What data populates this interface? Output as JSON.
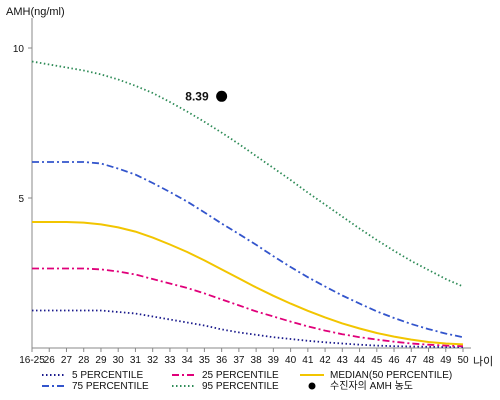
{
  "chart_data": {
    "type": "line",
    "ylabel": "AMH(ng/ml)",
    "xlabel": "나이",
    "ylim": [
      0,
      11
    ],
    "y_ticks": [
      5,
      10
    ],
    "x": [
      "16-25",
      "26",
      "27",
      "28",
      "29",
      "30",
      "31",
      "32",
      "33",
      "34",
      "35",
      "36",
      "37",
      "38",
      "39",
      "40",
      "41",
      "42",
      "43",
      "44",
      "45",
      "46",
      "47",
      "48",
      "49",
      "50"
    ],
    "grid": false,
    "legend_position": "bottom",
    "series": [
      {
        "name": "5 PERCENTILE",
        "color": "#1a1a8c",
        "dash": "dot",
        "values": [
          1.25,
          1.25,
          1.25,
          1.25,
          1.25,
          1.2,
          1.15,
          1.05,
          0.95,
          0.85,
          0.75,
          0.62,
          0.52,
          0.44,
          0.36,
          0.3,
          0.24,
          0.19,
          0.15,
          0.11,
          0.08,
          0.06,
          0.05,
          0.04,
          0.03,
          0.03
        ]
      },
      {
        "name": "25 PERCENTILE",
        "color": "#e0007a",
        "dash": "dashdot",
        "values": [
          2.65,
          2.65,
          2.65,
          2.65,
          2.62,
          2.55,
          2.45,
          2.3,
          2.15,
          2.0,
          1.82,
          1.62,
          1.42,
          1.22,
          1.05,
          0.88,
          0.72,
          0.58,
          0.46,
          0.36,
          0.28,
          0.21,
          0.15,
          0.11,
          0.08,
          0.06
        ]
      },
      {
        "name": "MEDIAN(50 PERCENTILE)",
        "color": "#f2c500",
        "dash": "solid",
        "values": [
          4.2,
          4.2,
          4.2,
          4.18,
          4.12,
          4.02,
          3.88,
          3.68,
          3.45,
          3.2,
          2.92,
          2.62,
          2.32,
          2.02,
          1.74,
          1.48,
          1.24,
          1.02,
          0.82,
          0.65,
          0.5,
          0.38,
          0.28,
          0.2,
          0.15,
          0.12
        ]
      },
      {
        "name": "75 PERCENTILE",
        "color": "#3355cc",
        "dash": "dashdot",
        "values": [
          6.2,
          6.2,
          6.2,
          6.2,
          6.15,
          5.98,
          5.78,
          5.5,
          5.2,
          4.88,
          4.52,
          4.15,
          3.8,
          3.44,
          3.06,
          2.7,
          2.36,
          2.05,
          1.75,
          1.48,
          1.22,
          1.0,
          0.8,
          0.63,
          0.48,
          0.36
        ]
      },
      {
        "name": "95 PERCENTILE",
        "color": "#2e8b57",
        "dash": "dot",
        "values": [
          9.55,
          9.45,
          9.35,
          9.25,
          9.12,
          8.95,
          8.74,
          8.5,
          8.2,
          7.88,
          7.54,
          7.18,
          6.8,
          6.4,
          6.0,
          5.6,
          5.18,
          4.78,
          4.38,
          3.98,
          3.6,
          3.24,
          2.9,
          2.6,
          2.3,
          2.05
        ]
      }
    ],
    "marker": {
      "name": "수진자의 AMH 농도",
      "x": "36",
      "y": 8.39,
      "label": "8.39",
      "color": "#000000"
    }
  }
}
